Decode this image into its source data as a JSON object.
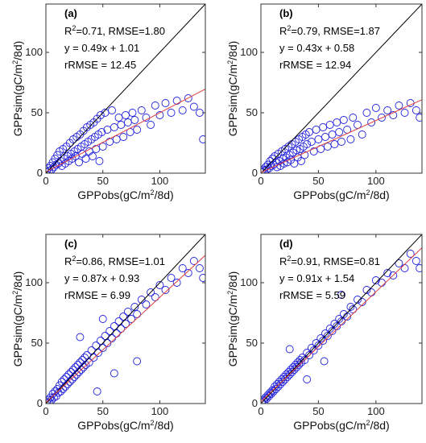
{
  "panels": [
    {
      "panel_label": "(a)",
      "stats": {
        "r2_prefix": "R",
        "r2_sup": "2",
        "r2_rest": "=0.71, RMSE=1.80",
        "equation": "y = 0.49x + 1.01",
        "rrmse": "rRMSE = 12.45"
      },
      "xlabel_pre": "GPPobs(gC/m",
      "xlabel_sup": "2",
      "xlabel_post": "/8d)",
      "ylabel_pre": "GPPsim(gC/m",
      "ylabel_sup": "2",
      "ylabel_post": "/8d)",
      "xticks": [
        "0",
        "50",
        "100"
      ],
      "yticks": [
        "0",
        "50",
        "100"
      ]
    },
    {
      "panel_label": "(b)",
      "stats": {
        "r2_prefix": "R",
        "r2_sup": "2",
        "r2_rest": "=0.79, RMSE=1.87",
        "equation": "y = 0.43x + 0.58",
        "rrmse": "rRMSE = 12.94"
      },
      "xlabel_pre": "GPPobs(gC/m",
      "xlabel_sup": "2",
      "xlabel_post": "/8d)",
      "ylabel_pre": "GPPsim(gC/m",
      "ylabel_sup": "2",
      "ylabel_post": "/8d)",
      "xticks": [
        "0",
        "50",
        "100"
      ],
      "yticks": [
        "0",
        "50",
        "100"
      ]
    },
    {
      "panel_label": "(c)",
      "stats": {
        "r2_prefix": "R",
        "r2_sup": "2",
        "r2_rest": "=0.86, RMSE=1.01",
        "equation": "y = 0.87x + 0.93",
        "rrmse": "rRMSE = 6.99"
      },
      "xlabel_pre": "GPPobs(gC/m",
      "xlabel_sup": "2",
      "xlabel_post": "/8d)",
      "ylabel_pre": "GPPsim(gC/m",
      "ylabel_sup": "2",
      "ylabel_post": "/8d)",
      "xticks": [
        "0",
        "50",
        "100"
      ],
      "yticks": [
        "0",
        "50",
        "100"
      ]
    },
    {
      "panel_label": "(d)",
      "stats": {
        "r2_prefix": "R",
        "r2_sup": "2",
        "r2_rest": "=0.91, RMSE=0.81",
        "equation": "y = 0.91x + 1.54",
        "rrmse": "rRMSE = 5.59"
      },
      "xlabel_pre": "GPPobs(gC/m",
      "xlabel_sup": "2",
      "xlabel_post": "/8d)",
      "ylabel_pre": "GPPsim(gC/m",
      "ylabel_sup": "2",
      "ylabel_post": "/8d)",
      "xticks": [
        "0",
        "50",
        "100"
      ],
      "yticks": [
        "0",
        "50",
        "100"
      ]
    }
  ],
  "colors": {
    "points": "#2222dd",
    "fit_line": "#e04040",
    "one_to_one": "#000000",
    "axes": "#333333"
  },
  "chart_data": [
    {
      "type": "scatter",
      "xlim": [
        0,
        140
      ],
      "ylim": [
        0,
        140
      ],
      "grid": false,
      "one_to_one": true,
      "fit": {
        "slope": 0.49,
        "intercept": 1.01
      },
      "points": [
        [
          1,
          1
        ],
        [
          2,
          4
        ],
        [
          3,
          2
        ],
        [
          4,
          6
        ],
        [
          5,
          3
        ],
        [
          6,
          9
        ],
        [
          7,
          5
        ],
        [
          8,
          12
        ],
        [
          9,
          7
        ],
        [
          10,
          15
        ],
        [
          11,
          8
        ],
        [
          12,
          18
        ],
        [
          13,
          10
        ],
        [
          14,
          6
        ],
        [
          15,
          20
        ],
        [
          16,
          12
        ],
        [
          17,
          8
        ],
        [
          18,
          22
        ],
        [
          19,
          14
        ],
        [
          20,
          10
        ],
        [
          21,
          25
        ],
        [
          22,
          16
        ],
        [
          23,
          12
        ],
        [
          24,
          28
        ],
        [
          25,
          18
        ],
        [
          26,
          14
        ],
        [
          27,
          30
        ],
        [
          28,
          20
        ],
        [
          29,
          9
        ],
        [
          30,
          32
        ],
        [
          31,
          22
        ],
        [
          32,
          16
        ],
        [
          33,
          35
        ],
        [
          34,
          24
        ],
        [
          35,
          12
        ],
        [
          36,
          38
        ],
        [
          37,
          26
        ],
        [
          38,
          18
        ],
        [
          39,
          40
        ],
        [
          40,
          28
        ],
        [
          41,
          14
        ],
        [
          42,
          42
        ],
        [
          43,
          30
        ],
        [
          44,
          20
        ],
        [
          45,
          45
        ],
        [
          46,
          32
        ],
        [
          47,
          10
        ],
        [
          48,
          48
        ],
        [
          49,
          34
        ],
        [
          50,
          22
        ],
        [
          52,
          50
        ],
        [
          54,
          36
        ],
        [
          56,
          26
        ],
        [
          58,
          52
        ],
        [
          60,
          38
        ],
        [
          62,
          28
        ],
        [
          64,
          46
        ],
        [
          66,
          40
        ],
        [
          68,
          30
        ],
        [
          70,
          48
        ],
        [
          72,
          42
        ],
        [
          74,
          34
        ],
        [
          76,
          50
        ],
        [
          78,
          44
        ],
        [
          80,
          36
        ],
        [
          84,
          52
        ],
        [
          88,
          46
        ],
        [
          92,
          40
        ],
        [
          96,
          56
        ],
        [
          100,
          48
        ],
        [
          105,
          58
        ],
        [
          110,
          50
        ],
        [
          115,
          60
        ],
        [
          120,
          52
        ],
        [
          125,
          62
        ],
        [
          130,
          55
        ],
        [
          135,
          50
        ],
        [
          138,
          28
        ]
      ]
    },
    {
      "type": "scatter",
      "xlim": [
        0,
        140
      ],
      "ylim": [
        0,
        140
      ],
      "grid": false,
      "one_to_one": true,
      "fit": {
        "slope": 0.43,
        "intercept": 0.58
      },
      "points": [
        [
          1,
          1
        ],
        [
          2,
          3
        ],
        [
          3,
          2
        ],
        [
          4,
          5
        ],
        [
          5,
          3
        ],
        [
          6,
          7
        ],
        [
          7,
          4
        ],
        [
          8,
          10
        ],
        [
          9,
          6
        ],
        [
          10,
          12
        ],
        [
          11,
          7
        ],
        [
          12,
          14
        ],
        [
          13,
          9
        ],
        [
          14,
          5
        ],
        [
          15,
          16
        ],
        [
          16,
          10
        ],
        [
          17,
          6
        ],
        [
          18,
          18
        ],
        [
          19,
          12
        ],
        [
          20,
          8
        ],
        [
          21,
          20
        ],
        [
          22,
          13
        ],
        [
          23,
          9
        ],
        [
          24,
          22
        ],
        [
          25,
          15
        ],
        [
          26,
          11
        ],
        [
          27,
          24
        ],
        [
          28,
          17
        ],
        [
          29,
          8
        ],
        [
          30,
          26
        ],
        [
          31,
          19
        ],
        [
          32,
          13
        ],
        [
          33,
          28
        ],
        [
          34,
          20
        ],
        [
          35,
          10
        ],
        [
          36,
          30
        ],
        [
          37,
          22
        ],
        [
          38,
          15
        ],
        [
          39,
          32
        ],
        [
          40,
          24
        ],
        [
          42,
          34
        ],
        [
          44,
          26
        ],
        [
          46,
          18
        ],
        [
          48,
          36
        ],
        [
          50,
          28
        ],
        [
          52,
          20
        ],
        [
          54,
          38
        ],
        [
          56,
          30
        ],
        [
          58,
          22
        ],
        [
          60,
          40
        ],
        [
          62,
          32
        ],
        [
          64,
          24
        ],
        [
          66,
          42
        ],
        [
          68,
          34
        ],
        [
          70,
          26
        ],
        [
          72,
          44
        ],
        [
          75,
          36
        ],
        [
          78,
          28
        ],
        [
          80,
          46
        ],
        [
          84,
          40
        ],
        [
          88,
          32
        ],
        [
          92,
          50
        ],
        [
          96,
          42
        ],
        [
          100,
          54
        ],
        [
          105,
          46
        ],
        [
          110,
          52
        ],
        [
          115,
          48
        ],
        [
          120,
          56
        ],
        [
          125,
          50
        ],
        [
          130,
          58
        ],
        [
          135,
          52
        ],
        [
          138,
          46
        ]
      ]
    },
    {
      "type": "scatter",
      "xlim": [
        0,
        140
      ],
      "ylim": [
        0,
        140
      ],
      "grid": false,
      "one_to_one": true,
      "fit": {
        "slope": 0.87,
        "intercept": 0.93
      },
      "points": [
        [
          1,
          1
        ],
        [
          2,
          3
        ],
        [
          3,
          1
        ],
        [
          4,
          5
        ],
        [
          5,
          3
        ],
        [
          6,
          8
        ],
        [
          7,
          5
        ],
        [
          8,
          10
        ],
        [
          9,
          6
        ],
        [
          10,
          12
        ],
        [
          11,
          9
        ],
        [
          12,
          15
        ],
        [
          13,
          10
        ],
        [
          14,
          18
        ],
        [
          15,
          12
        ],
        [
          16,
          20
        ],
        [
          17,
          14
        ],
        [
          18,
          22
        ],
        [
          19,
          16
        ],
        [
          20,
          24
        ],
        [
          21,
          18
        ],
        [
          22,
          26
        ],
        [
          23,
          20
        ],
        [
          24,
          28
        ],
        [
          25,
          22
        ],
        [
          26,
          30
        ],
        [
          27,
          24
        ],
        [
          28,
          32
        ],
        [
          29,
          26
        ],
        [
          30,
          34
        ],
        [
          31,
          28
        ],
        [
          32,
          36
        ],
        [
          33,
          30
        ],
        [
          34,
          38
        ],
        [
          35,
          32
        ],
        [
          36,
          40
        ],
        [
          38,
          34
        ],
        [
          40,
          44
        ],
        [
          42,
          38
        ],
        [
          44,
          48
        ],
        [
          46,
          42
        ],
        [
          48,
          52
        ],
        [
          50,
          46
        ],
        [
          52,
          56
        ],
        [
          54,
          50
        ],
        [
          56,
          60
        ],
        [
          58,
          54
        ],
        [
          60,
          64
        ],
        [
          62,
          58
        ],
        [
          64,
          68
        ],
        [
          66,
          62
        ],
        [
          68,
          72
        ],
        [
          70,
          66
        ],
        [
          72,
          76
        ],
        [
          75,
          70
        ],
        [
          78,
          80
        ],
        [
          80,
          74
        ],
        [
          84,
          86
        ],
        [
          88,
          82
        ],
        [
          92,
          92
        ],
        [
          96,
          88
        ],
        [
          100,
          98
        ],
        [
          105,
          94
        ],
        [
          110,
          104
        ],
        [
          115,
          100
        ],
        [
          120,
          112
        ],
        [
          125,
          108
        ],
        [
          130,
          118
        ],
        [
          135,
          112
        ],
        [
          138,
          104
        ],
        [
          45,
          10
        ],
        [
          60,
          25
        ],
        [
          80,
          35
        ],
        [
          50,
          70
        ],
        [
          30,
          55
        ]
      ]
    },
    {
      "type": "scatter",
      "xlim": [
        0,
        140
      ],
      "ylim": [
        0,
        140
      ],
      "grid": false,
      "one_to_one": true,
      "fit": {
        "slope": 0.91,
        "intercept": 1.54
      },
      "points": [
        [
          1,
          1
        ],
        [
          2,
          3
        ],
        [
          3,
          2
        ],
        [
          4,
          5
        ],
        [
          5,
          4
        ],
        [
          6,
          7
        ],
        [
          7,
          6
        ],
        [
          8,
          9
        ],
        [
          9,
          8
        ],
        [
          10,
          11
        ],
        [
          11,
          10
        ],
        [
          12,
          14
        ],
        [
          13,
          12
        ],
        [
          14,
          16
        ],
        [
          15,
          14
        ],
        [
          16,
          18
        ],
        [
          17,
          16
        ],
        [
          18,
          20
        ],
        [
          19,
          18
        ],
        [
          20,
          22
        ],
        [
          21,
          20
        ],
        [
          22,
          24
        ],
        [
          23,
          22
        ],
        [
          24,
          26
        ],
        [
          25,
          24
        ],
        [
          26,
          28
        ],
        [
          27,
          26
        ],
        [
          28,
          30
        ],
        [
          29,
          28
        ],
        [
          30,
          32
        ],
        [
          31,
          30
        ],
        [
          32,
          34
        ],
        [
          33,
          32
        ],
        [
          34,
          36
        ],
        [
          35,
          34
        ],
        [
          36,
          38
        ],
        [
          38,
          36
        ],
        [
          40,
          42
        ],
        [
          42,
          40
        ],
        [
          44,
          46
        ],
        [
          46,
          44
        ],
        [
          48,
          50
        ],
        [
          50,
          48
        ],
        [
          52,
          54
        ],
        [
          54,
          52
        ],
        [
          56,
          58
        ],
        [
          58,
          56
        ],
        [
          60,
          62
        ],
        [
          62,
          60
        ],
        [
          64,
          66
        ],
        [
          66,
          64
        ],
        [
          68,
          70
        ],
        [
          70,
          68
        ],
        [
          72,
          74
        ],
        [
          75,
          72
        ],
        [
          78,
          80
        ],
        [
          80,
          78
        ],
        [
          84,
          86
        ],
        [
          88,
          84
        ],
        [
          92,
          94
        ],
        [
          96,
          92
        ],
        [
          100,
          102
        ],
        [
          105,
          100
        ],
        [
          110,
          108
        ],
        [
          115,
          106
        ],
        [
          120,
          116
        ],
        [
          125,
          112
        ],
        [
          130,
          124
        ],
        [
          135,
          118
        ],
        [
          138,
          112
        ],
        [
          40,
          20
        ],
        [
          55,
          35
        ],
        [
          25,
          45
        ],
        [
          70,
          90
        ]
      ]
    }
  ]
}
